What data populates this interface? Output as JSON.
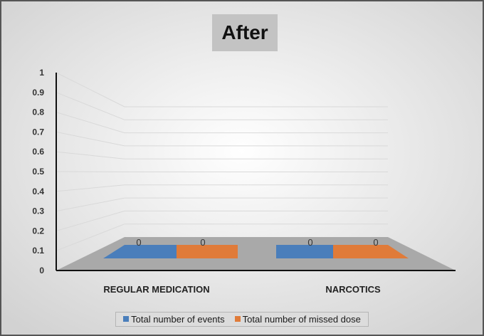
{
  "chart_data": {
    "type": "bar",
    "title": "After",
    "categories": [
      "REGULAR MEDICATION",
      "NARCOTICS"
    ],
    "series": [
      {
        "name": "Total number of events",
        "values": [
          0,
          0
        ],
        "color": "#4a7ebb"
      },
      {
        "name": "Total number of missed dose",
        "values": [
          0,
          0
        ],
        "color": "#e07b39"
      }
    ],
    "data_labels": [
      "0",
      "0",
      "0",
      "0"
    ],
    "ylim": [
      0,
      1
    ],
    "yticks": [
      "0",
      "0.1",
      "0.2",
      "0.3",
      "0.4",
      "0.5",
      "0.6",
      "0.7",
      "0.8",
      "0.9",
      "1"
    ],
    "grid": true,
    "legend": "bottom",
    "view": "3d-perspective"
  }
}
